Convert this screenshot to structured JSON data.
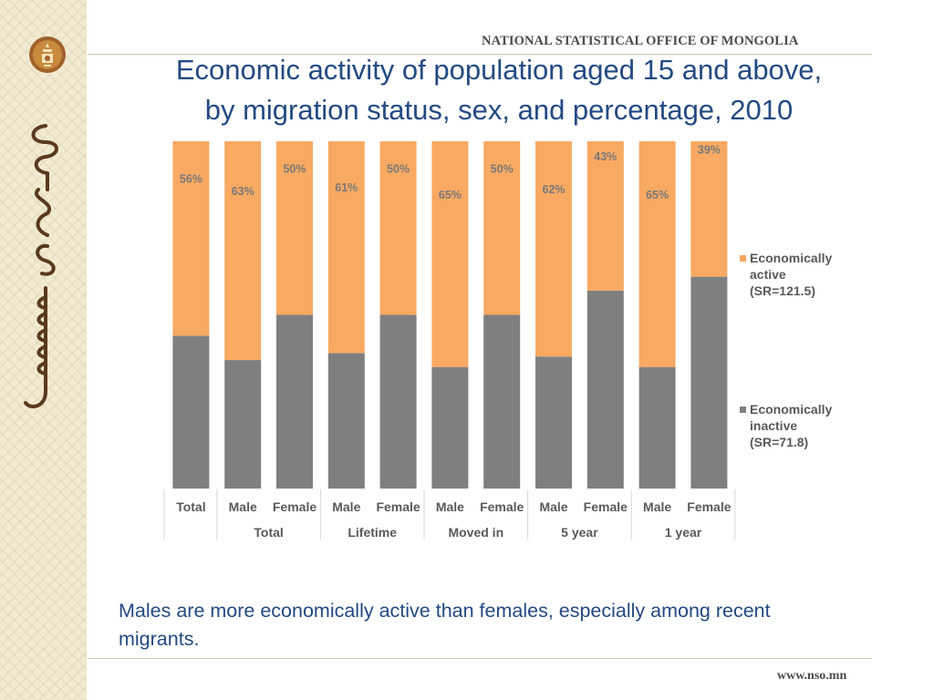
{
  "header": {
    "office_name": "NATIONAL STATISTICAL OFFICE OF MONGOLIA",
    "title_line1": "Economic activity of population aged 15 and above,",
    "title_line2": "by migration status, sex, and percentage, 2010"
  },
  "logo": {
    "icon": "soyombo-emblem-icon"
  },
  "sidebar": {
    "icon": "mongolian-script-decoration"
  },
  "colors": {
    "active": "#f8a962",
    "inactive": "#7f7f7f",
    "title": "#234a82",
    "axis_text": "#595959",
    "value_text": "#7a7a7a"
  },
  "chart_data": {
    "type": "stacked-bar-100",
    "title": "Economic activity of population aged 15 and above, by migration status, sex, and percentage, 2010",
    "categories": [
      {
        "label": "Total",
        "group": ""
      },
      {
        "label": "Male",
        "group": "Total"
      },
      {
        "label": "Female",
        "group": "Total"
      },
      {
        "label": "Male",
        "group": "Lifetime"
      },
      {
        "label": "Female",
        "group": "Lifetime"
      },
      {
        "label": "Male",
        "group": "Moved in"
      },
      {
        "label": "Female",
        "group": "Moved in"
      },
      {
        "label": "Male",
        "group": "5 year"
      },
      {
        "label": "Female",
        "group": "5 year"
      },
      {
        "label": "Male",
        "group": "1 year"
      },
      {
        "label": "Female",
        "group": "1 year"
      }
    ],
    "groups": [
      "Total",
      "Lifetime",
      "Moved in",
      "5 year",
      "1 year"
    ],
    "series": [
      {
        "name": "Economically active (SR=121.5)",
        "values": [
          56,
          63,
          50,
          61,
          50,
          65,
          50,
          62,
          43,
          65,
          39
        ]
      },
      {
        "name": "Economically inactive (SR=71.8)",
        "values": [
          44,
          37,
          50,
          39,
          50,
          35,
          50,
          38,
          57,
          35,
          61
        ]
      }
    ],
    "value_labels": [
      "56%",
      "63%",
      "50%",
      "61%",
      "50%",
      "65%",
      "50%",
      "62%",
      "43%",
      "65%",
      "39%"
    ],
    "legend": [
      {
        "lines": [
          "Economically",
          "active",
          "(SR=121.5)"
        ]
      },
      {
        "lines": [
          "Economically",
          "inactive",
          "(SR=71.8)"
        ]
      }
    ],
    "ylim": [
      0,
      100
    ],
    "legend_position": "right"
  },
  "footnote": "Males are more economically active than females, especially among recent migrants.",
  "footer": {
    "website": "www.nso.mn"
  }
}
